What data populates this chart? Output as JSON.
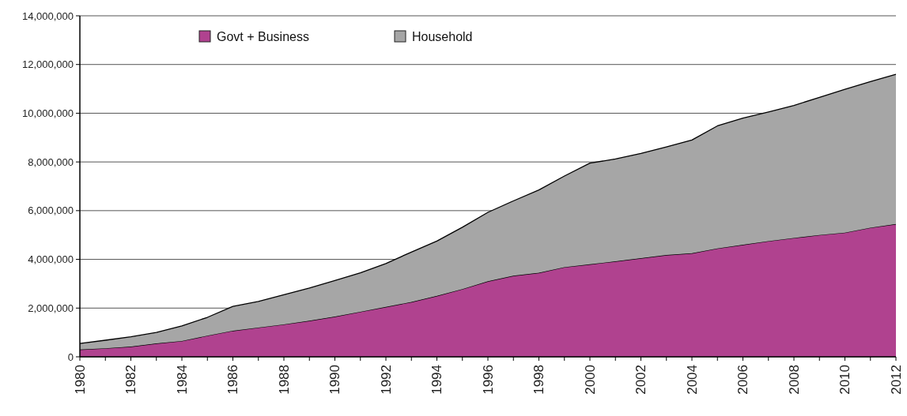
{
  "chart_data": {
    "type": "area",
    "stacked": true,
    "x": [
      1980,
      1981,
      1982,
      1983,
      1984,
      1985,
      1986,
      1987,
      1988,
      1989,
      1990,
      1991,
      1992,
      1993,
      1994,
      1995,
      1996,
      1997,
      1998,
      1999,
      2000,
      2001,
      2002,
      2003,
      2004,
      2005,
      2006,
      2007,
      2008,
      2009,
      2010,
      2011,
      2012
    ],
    "series": [
      {
        "name": "Govt + Business",
        "color": "#b0428f",
        "values": [
          300000,
          350000,
          420000,
          550000,
          650000,
          870000,
          1070000,
          1200000,
          1330000,
          1480000,
          1650000,
          1850000,
          2050000,
          2250000,
          2500000,
          2780000,
          3100000,
          3330000,
          3450000,
          3680000,
          3800000,
          3920000,
          4050000,
          4180000,
          4250000,
          4450000,
          4600000,
          4750000,
          4880000,
          5000000,
          5100000,
          5300000,
          5450000
        ]
      },
      {
        "name": "Household",
        "color": "#a6a6a6",
        "values": [
          250000,
          330000,
          400000,
          450000,
          620000,
          750000,
          1000000,
          1070000,
          1220000,
          1340000,
          1480000,
          1600000,
          1780000,
          2050000,
          2250000,
          2540000,
          2830000,
          3070000,
          3400000,
          3740000,
          4150000,
          4200000,
          4300000,
          4440000,
          4650000,
          5030000,
          5200000,
          5300000,
          5440000,
          5650000,
          5880000,
          6000000,
          6150000
        ]
      }
    ],
    "xlim": [
      1980,
      2012
    ],
    "xticks": [
      1980,
      {
        "value": 1981,
        "label": null
      },
      1982,
      {
        "value": 1983,
        "label": null
      },
      1984,
      {
        "value": 1985,
        "label": null
      },
      1986,
      {
        "value": 1987,
        "label": null
      },
      1988,
      {
        "value": 1989,
        "label": null
      },
      1990,
      {
        "value": 1991,
        "label": null
      },
      1992,
      {
        "value": 1993,
        "label": null
      },
      1994,
      {
        "value": 1995,
        "label": null
      },
      1996,
      {
        "value": 1997,
        "label": null
      },
      1998,
      {
        "value": 1999,
        "label": null
      },
      2000,
      {
        "value": 2001,
        "label": null
      },
      2002,
      {
        "value": 2003,
        "label": null
      },
      2004,
      {
        "value": 2005,
        "label": null
      },
      2006,
      {
        "value": 2007,
        "label": null
      },
      2008,
      {
        "value": 2009,
        "label": null
      },
      2010,
      {
        "value": 2011,
        "label": null
      },
      2012
    ],
    "ylim": [
      0,
      14000000
    ],
    "yticks": [
      {
        "value": 0,
        "label": "0"
      },
      {
        "value": 2000000,
        "label": "2,000,000"
      },
      {
        "value": 4000000,
        "label": "4,000,000"
      },
      {
        "value": 6000000,
        "label": "6,000,000"
      },
      {
        "value": 8000000,
        "label": "8,000,000"
      },
      {
        "value": 10000000,
        "label": "10,000,000"
      },
      {
        "value": 12000000,
        "label": "12,000,000"
      },
      {
        "value": 14000000,
        "label": "14,000,000"
      }
    ],
    "grid": "y",
    "legend": "top"
  }
}
